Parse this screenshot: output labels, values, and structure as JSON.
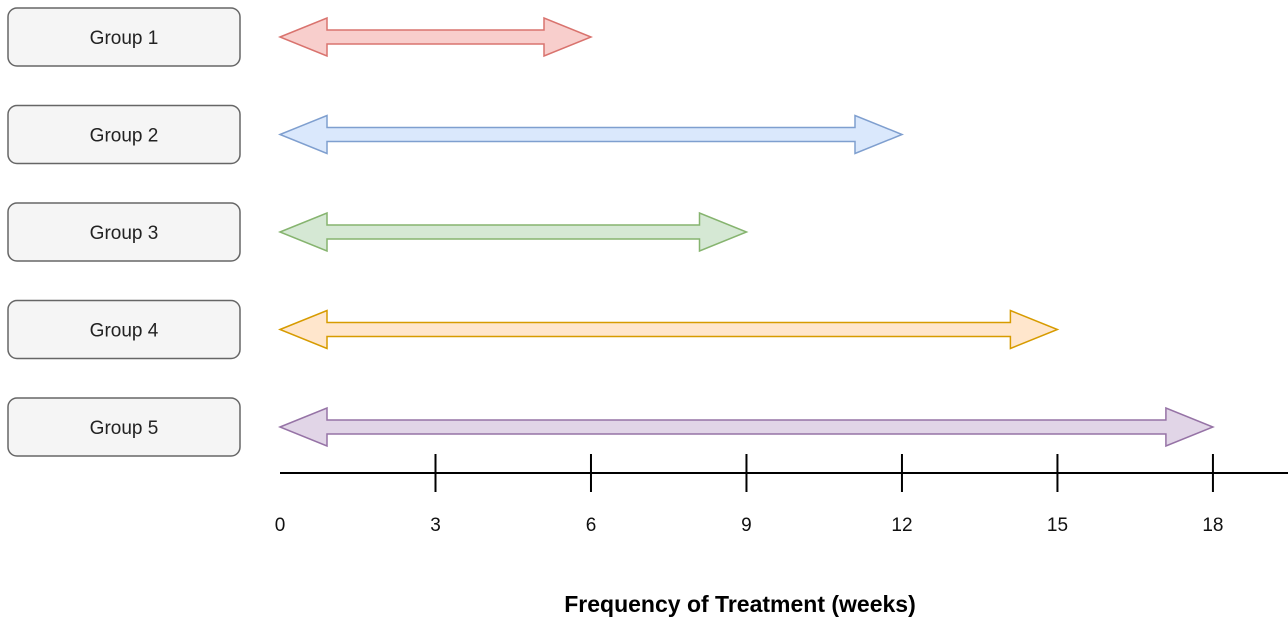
{
  "chart_data": {
    "type": "bar",
    "xlabel": "Frequency of Treatment (weeks)",
    "xlim": [
      0,
      18
    ],
    "xticks": [
      0,
      3,
      6,
      9,
      12,
      15,
      18
    ],
    "xtick_labels": [
      "0",
      "3",
      "6",
      "9",
      "12",
      "15",
      "18"
    ],
    "categories": [
      "Group 1",
      "Group 2",
      "Group 3",
      "Group 4",
      "Group 5"
    ],
    "ranges": [
      {
        "start": 0,
        "end": 6,
        "fill": "#f8cecc",
        "stroke": "#d9736e"
      },
      {
        "start": 0,
        "end": 12,
        "fill": "#dae8fc",
        "stroke": "#7f9fcf"
      },
      {
        "start": 0,
        "end": 9,
        "fill": "#d5e8d4",
        "stroke": "#86b46f"
      },
      {
        "start": 0,
        "end": 15,
        "fill": "#ffe6cc",
        "stroke": "#d79b00"
      },
      {
        "start": 0,
        "end": 18,
        "fill": "#e1d5e7",
        "stroke": "#9673a6"
      }
    ],
    "label_box": {
      "fill": "#f5f5f5",
      "stroke": "#666666"
    },
    "grid": false,
    "legend": "none"
  }
}
